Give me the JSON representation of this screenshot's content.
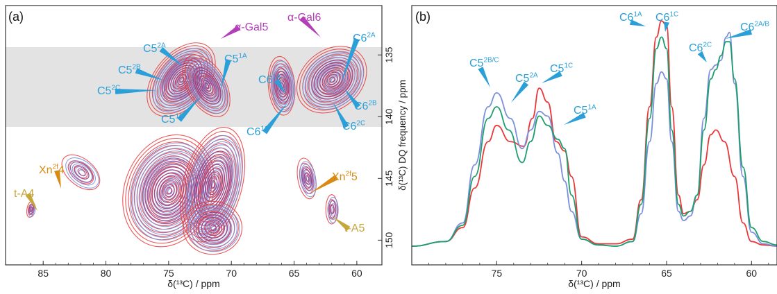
{
  "colors": {
    "red": "#e8383a",
    "blue": "#7b8fdc",
    "green": "#1f9d6e",
    "purple": "#a0357a",
    "cyan_label": "#2a9fd8",
    "magenta_label": "#b33fb8",
    "orange_label": "#d98a12",
    "tan_label": "#c7a63a",
    "shade": "#e3e3e3"
  },
  "panel_a": {
    "tag": "(a)",
    "xlabel": "δ(¹³C) / ppm",
    "ylabel": "δ(¹³C) DQ frequency / ppm",
    "x_ticks": [
      "85",
      "80",
      "75",
      "70",
      "65",
      "60"
    ],
    "y_ticks": [
      "135",
      "140",
      "145",
      "150"
    ],
    "labels": [
      {
        "id": "c5-2a",
        "base": "C5",
        "sup": "2A",
        "color": "cyan"
      },
      {
        "id": "c5-2b",
        "base": "C5",
        "sup": "2B",
        "color": "cyan"
      },
      {
        "id": "c5-2c",
        "base": "C5",
        "sup": "2C",
        "color": "cyan"
      },
      {
        "id": "c5-1a",
        "base": "C5",
        "sup": "1A",
        "color": "cyan"
      },
      {
        "id": "c5-1c",
        "base": "C5",
        "sup": "1C",
        "color": "cyan"
      },
      {
        "id": "c6-1a",
        "base": "C6",
        "sup": "1A",
        "color": "cyan"
      },
      {
        "id": "c6-1c",
        "base": "C6",
        "sup": "1C",
        "color": "cyan"
      },
      {
        "id": "c6-2a",
        "base": "C6",
        "sup": "2A",
        "color": "cyan"
      },
      {
        "id": "c6-2b",
        "base": "C6",
        "sup": "2B",
        "color": "cyan"
      },
      {
        "id": "c6-2c",
        "base": "C6",
        "sup": "2C",
        "color": "cyan"
      },
      {
        "id": "a-gal5",
        "base": "α-Gal5",
        "sup": "",
        "color": "magenta"
      },
      {
        "id": "a-gal6",
        "base": "α-Gal6",
        "sup": "",
        "color": "magenta"
      },
      {
        "id": "xn-4",
        "base": "Xn",
        "sup": "2f",
        "tail": "4",
        "color": "orange"
      },
      {
        "id": "xn-5",
        "base": "Xn",
        "sup": "2f",
        "tail": "5",
        "color": "orange"
      },
      {
        "id": "t-a4",
        "base": "t-A4",
        "sup": "",
        "color": "tan"
      },
      {
        "id": "t-a5",
        "base": "t-A5",
        "sup": "",
        "color": "tan"
      }
    ]
  },
  "panel_b": {
    "tag": "(b)",
    "xlabel": "δ(¹³C) / ppm",
    "x_ticks": [
      "75",
      "70",
      "65",
      "60"
    ],
    "labels": [
      {
        "id": "c5-2bc",
        "base": "C5",
        "sup": "2B/C"
      },
      {
        "id": "c5-2a-b",
        "base": "C5",
        "sup": "2A"
      },
      {
        "id": "c5-1c-b",
        "base": "C5",
        "sup": "1C"
      },
      {
        "id": "c5-1a-b",
        "base": "C5",
        "sup": "1A"
      },
      {
        "id": "c6-1a-b",
        "base": "C6",
        "sup": "1A"
      },
      {
        "id": "c6-1c-b",
        "base": "C6",
        "sup": "1C"
      },
      {
        "id": "c6-2c-b",
        "base": "C6",
        "sup": "2C"
      },
      {
        "id": "c6-2ab-b",
        "base": "C6",
        "sup": "2A/B"
      }
    ]
  },
  "chart_data": [
    {
      "type": "heatmap",
      "xlabel": "δ(¹³C) / ppm",
      "ylabel": "δ(¹³C) DQ frequency / ppm",
      "xlim": [
        88,
        58
      ],
      "ylim": [
        152,
        131
      ],
      "peaks": [
        {
          "x": 82.0,
          "y": 144.5
        },
        {
          "x": 74.0,
          "y": 137.0
        },
        {
          "x": 72.0,
          "y": 137.5
        },
        {
          "x": 66.0,
          "y": 137.5
        },
        {
          "x": 62.0,
          "y": 137.0
        },
        {
          "x": 64.0,
          "y": 145.0
        },
        {
          "x": 62.0,
          "y": 147.5
        },
        {
          "x": 75.0,
          "y": 146.0
        },
        {
          "x": 71.5,
          "y": 145.5
        },
        {
          "x": 71.5,
          "y": 149.0
        },
        {
          "x": 86.0,
          "y": 147.5
        }
      ]
    },
    {
      "type": "line",
      "xlabel": "δ(¹³C) / ppm",
      "xlim": [
        80,
        58.5
      ],
      "series": [
        {
          "color": "red",
          "x": [
            80,
            78,
            77,
            76.3,
            75.5,
            75,
            74.2,
            73.4,
            72.9,
            72.5,
            72,
            71.5,
            71,
            70.6,
            70,
            69,
            68,
            67,
            66.5,
            66,
            65.6,
            65.3,
            65,
            64.7,
            64.3,
            64,
            63.6,
            63.2,
            62.8,
            62.4,
            62.1,
            61.6,
            61,
            60.5,
            60,
            59.3,
            58.5
          ],
          "y": [
            0,
            0.02,
            0.08,
            0.25,
            0.45,
            0.52,
            0.45,
            0.43,
            0.55,
            0.68,
            0.62,
            0.45,
            0.41,
            0.3,
            0.04,
            0.01,
            0.01,
            0.03,
            0.2,
            0.6,
            0.9,
            0.97,
            0.95,
            0.6,
            0.22,
            0.14,
            0.15,
            0.2,
            0.35,
            0.48,
            0.5,
            0.45,
            0.3,
            0.1,
            0.02,
            0.005,
            0
          ]
        },
        {
          "color": "blue",
          "x": [
            80,
            78,
            77,
            76.3,
            75.5,
            75,
            74.2,
            73.5,
            73,
            72.5,
            72,
            71.4,
            71,
            70.6,
            70,
            69,
            68,
            67,
            66.5,
            66,
            65.6,
            65.3,
            65,
            64.7,
            64.3,
            64,
            63.6,
            63.2,
            62.8,
            62.4,
            62.1,
            61.8,
            61.5,
            61.3,
            61,
            60.5,
            60,
            59.3,
            58.5
          ],
          "y": [
            0,
            0.02,
            0.1,
            0.35,
            0.6,
            0.66,
            0.55,
            0.42,
            0.5,
            0.58,
            0.56,
            0.4,
            0.28,
            0.15,
            0.03,
            0.005,
            0,
            0.02,
            0.14,
            0.45,
            0.7,
            0.75,
            0.72,
            0.45,
            0.15,
            0.11,
            0.13,
            0.22,
            0.55,
            0.76,
            0.78,
            0.8,
            0.9,
            0.92,
            0.7,
            0.3,
            0.06,
            0.01,
            0
          ]
        },
        {
          "color": "green",
          "x": [
            80,
            78,
            77,
            76.3,
            75.5,
            75,
            74.3,
            73.5,
            73,
            72.5,
            72,
            71.4,
            71,
            70.6,
            70,
            69,
            68,
            67,
            66.5,
            66,
            65.6,
            65.3,
            65,
            64.7,
            64.3,
            64,
            63.6,
            63.2,
            62.8,
            62.4,
            62.1,
            61.8,
            61.5,
            61.3,
            61,
            60.5,
            60,
            59.3,
            58.5
          ],
          "y": [
            0,
            0.02,
            0.09,
            0.3,
            0.55,
            0.6,
            0.5,
            0.36,
            0.45,
            0.56,
            0.52,
            0.46,
            0.42,
            0.22,
            0.03,
            0.005,
            0,
            0.02,
            0.18,
            0.55,
            0.85,
            0.9,
            0.85,
            0.5,
            0.18,
            0.13,
            0.15,
            0.22,
            0.5,
            0.72,
            0.76,
            0.82,
            0.88,
            0.88,
            0.72,
            0.34,
            0.08,
            0.02,
            0.005
          ]
        }
      ]
    }
  ]
}
